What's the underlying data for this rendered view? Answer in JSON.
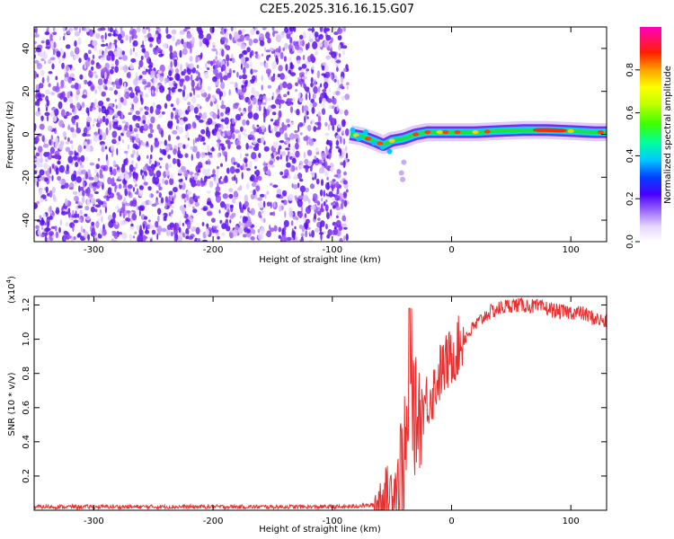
{
  "title": "C2E5.2025.316.16.15.G07",
  "colors": {
    "snr_line": "#e83030",
    "spectrum_mark": "#7b2cf0",
    "axis": "#000000"
  },
  "chart_data": [
    {
      "type": "heatmap",
      "xlabel": "Height of straight line (km)",
      "ylabel": "Frequency (Hz)",
      "xlim": [
        -350,
        130
      ],
      "ylim": [
        -50,
        50
      ],
      "xticks": [
        -300,
        -200,
        -100,
        0,
        100
      ],
      "yticks": [
        -40,
        -20,
        0,
        20,
        40
      ],
      "noise_region_x": [
        -350,
        -87
      ],
      "signal_ridge": {
        "x": [
          -85,
          -75,
          -65,
          -57,
          -50,
          -40,
          -30,
          -20,
          0,
          20,
          40,
          60,
          80,
          100,
          120,
          130
        ],
        "y": [
          0,
          -1,
          -3,
          -5,
          -3,
          -2,
          0,
          1,
          1,
          1,
          1.5,
          2,
          2,
          1.5,
          1,
          1
        ]
      },
      "colorbar": {
        "label": "Normalized spectral amplitude",
        "range": [
          0,
          1
        ],
        "ticks": [
          "0.0",
          "0.2",
          "0.4",
          "0.6",
          "0.8"
        ]
      }
    },
    {
      "type": "line",
      "xlabel": "Height of straight line (km)",
      "ylabel": "SNR (10 * v/v)",
      "scale_label": "(x10",
      "scale_exp": "4",
      "xlim": [
        -350,
        130
      ],
      "ylim": [
        0,
        1.25
      ],
      "xticks": [
        -300,
        -200,
        -100,
        0,
        100
      ],
      "yticks": [
        0.2,
        0.4,
        0.6,
        0.8,
        1.0,
        1.2
      ],
      "ytick_labels": [
        "0.2",
        "0.4",
        "0.6",
        "0.8",
        "1.0",
        "1.2"
      ],
      "series": [
        {
          "name": "SNR",
          "x": [
            -350,
            -250,
            -150,
            -90,
            -65,
            -60,
            -55,
            -50,
            -45,
            -40,
            -35,
            -30,
            -25,
            -20,
            -15,
            -10,
            -5,
            0,
            5,
            10,
            20,
            30,
            40,
            50,
            60,
            70,
            80,
            90,
            100,
            110,
            120,
            130
          ],
          "y": [
            0.02,
            0.02,
            0.02,
            0.02,
            0.03,
            0.05,
            0.08,
            0.12,
            0.18,
            0.3,
            0.5,
            0.55,
            0.6,
            0.65,
            0.7,
            0.8,
            0.85,
            0.9,
            0.95,
            1.0,
            1.08,
            1.15,
            1.18,
            1.2,
            1.2,
            1.19,
            1.18,
            1.16,
            1.16,
            1.15,
            1.12,
            1.1
          ]
        }
      ]
    }
  ]
}
